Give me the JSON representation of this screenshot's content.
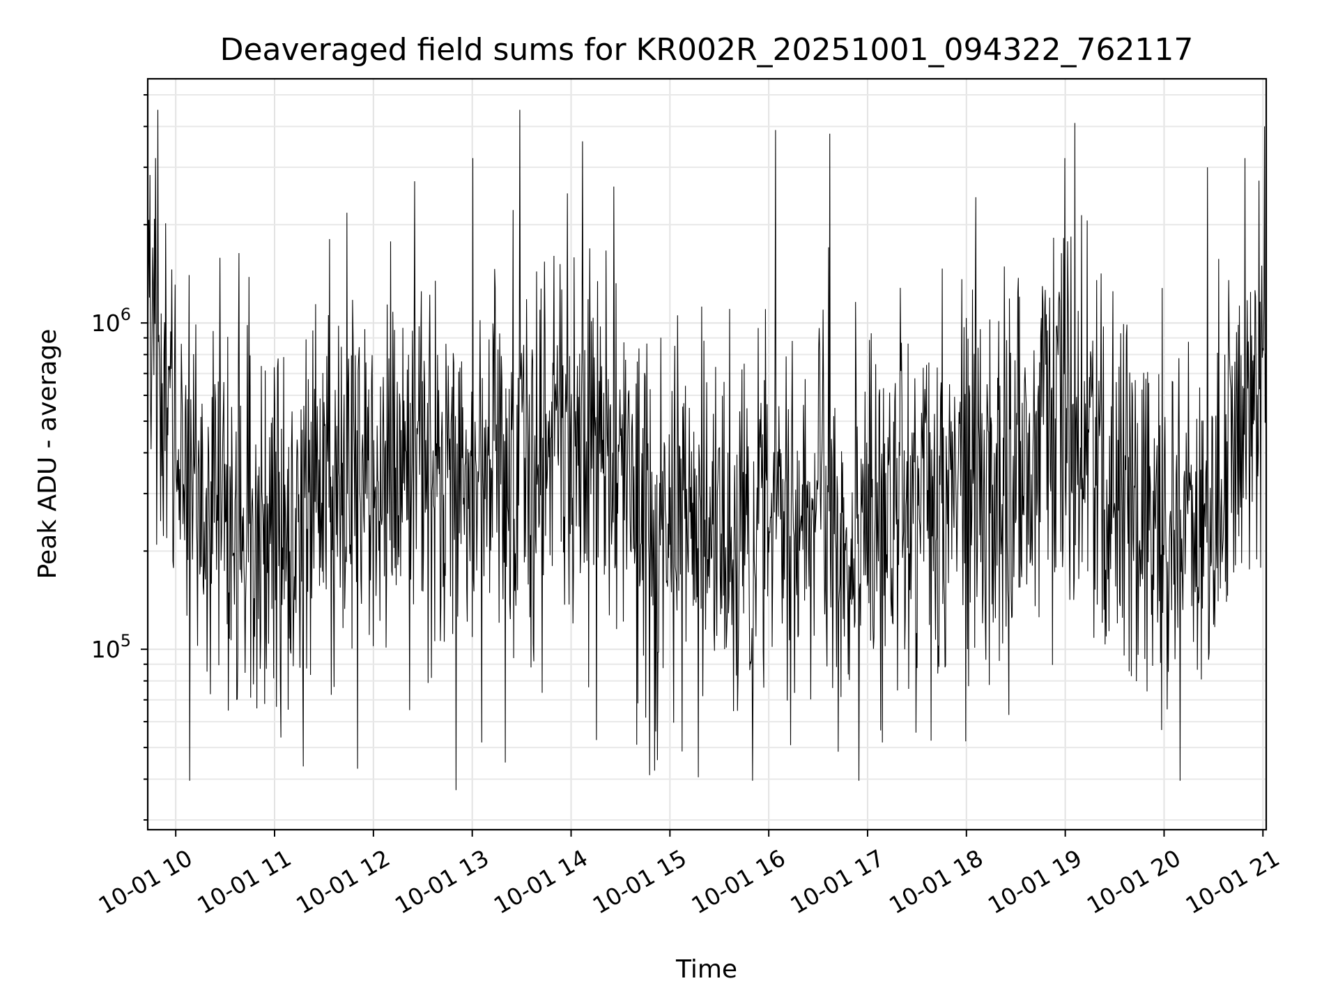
{
  "chart_data": {
    "type": "line",
    "title": "Deaveraged field sums for KR002R_20251001_094322_762117",
    "xlabel": "Time",
    "ylabel": "Peak ADU - average",
    "x_scale": "time",
    "y_scale": "log",
    "xlim": [
      "2025-10-01 09:43",
      "2025-10-01 21:02"
    ],
    "ylim": [
      28000,
      5600000
    ],
    "grid": true,
    "x_tick_labels": [
      "10-01 10",
      "10-01 11",
      "10-01 12",
      "10-01 13",
      "10-01 14",
      "10-01 15",
      "10-01 16",
      "10-01 17",
      "10-01 18",
      "10-01 19",
      "10-01 20",
      "10-01 21"
    ],
    "y_tick_labels": [
      {
        "base": "10",
        "exp": "5",
        "value": 100000
      },
      {
        "base": "10",
        "exp": "6",
        "value": 1000000
      }
    ],
    "series": [
      {
        "color": "#000000",
        "envelope_hours": [
          9.72,
          10,
          10.5,
          11,
          11.5,
          12,
          12.5,
          13,
          13.5,
          14,
          14.5,
          15,
          15.5,
          16,
          16.5,
          17,
          17.5,
          18,
          18.5,
          19,
          19.5,
          20,
          20.5,
          21,
          21.05
        ],
        "envelope_center": [
          1000000,
          400000,
          250000,
          220000,
          300000,
          330000,
          380000,
          340000,
          360000,
          450000,
          330000,
          230000,
          220000,
          260000,
          230000,
          210000,
          280000,
          300000,
          340000,
          480000,
          260000,
          250000,
          250000,
          800000,
          1100000
        ],
        "peaks": [
          {
            "x": "2025-10-01 09:49",
            "y": 4500000
          },
          {
            "x": "2025-10-01 13:29",
            "y": 4500000
          },
          {
            "x": "2025-10-01 19:06",
            "y": 4100000
          },
          {
            "x": "2025-10-01 14:07",
            "y": 3600000
          },
          {
            "x": "2025-10-01 16:04",
            "y": 3900000
          },
          {
            "x": "2025-10-01 16:37",
            "y": 3800000
          },
          {
            "x": "2025-10-01 21:01",
            "y": 4000000
          }
        ],
        "troughs": [
          {
            "x": "2025-10-01 12:50",
            "y": 37000
          },
          {
            "x": "2025-10-01 13:20",
            "y": 45000
          },
          {
            "x": "2025-10-01 14:40",
            "y": 51000
          }
        ],
        "n_points": 2000
      }
    ]
  }
}
